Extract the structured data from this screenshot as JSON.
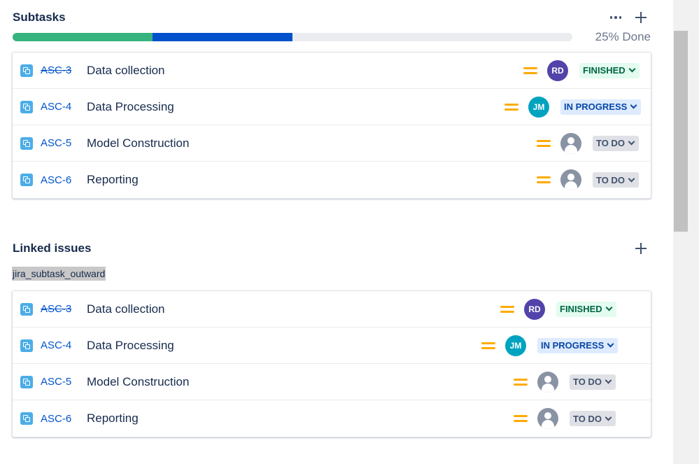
{
  "subtasks": {
    "title": "Subtasks",
    "progress": {
      "text": "25% Done",
      "done_fraction": 0.25,
      "in_progress_fraction": 0.25
    },
    "items": [
      {
        "key": "ASC-3",
        "summary": "Data collection",
        "assignee": "RD",
        "avatar_color": "#5243aa",
        "status": "FINISHED",
        "status_type": "finished",
        "key_struck": true
      },
      {
        "key": "ASC-4",
        "summary": "Data Processing",
        "assignee": "JM",
        "avatar_color": "#00a3bf",
        "status": "IN PROGRESS",
        "status_type": "inprogress",
        "key_struck": false
      },
      {
        "key": "ASC-5",
        "summary": "Model Construction",
        "assignee": "",
        "avatar_color": "#8993a4",
        "status": "TO DO",
        "status_type": "todo",
        "key_struck": false
      },
      {
        "key": "ASC-6",
        "summary": "Reporting",
        "assignee": "",
        "avatar_color": "#8993a4",
        "status": "TO DO",
        "status_type": "todo",
        "key_struck": false
      }
    ]
  },
  "linked_issues": {
    "title": "Linked issues",
    "relation_label": "jira_subtask_outward",
    "items": [
      {
        "key": "ASC-3",
        "summary": "Data collection",
        "assignee": "RD",
        "avatar_color": "#5243aa",
        "status": "FINISHED",
        "status_type": "finished",
        "key_struck": true
      },
      {
        "key": "ASC-4",
        "summary": "Data Processing",
        "assignee": "JM",
        "avatar_color": "#00a3bf",
        "status": "IN PROGRESS",
        "status_type": "inprogress",
        "key_struck": false
      },
      {
        "key": "ASC-5",
        "summary": "Model Construction",
        "assignee": "",
        "avatar_color": "#8993a4",
        "status": "TO DO",
        "status_type": "todo",
        "key_struck": false
      },
      {
        "key": "ASC-6",
        "summary": "Reporting",
        "assignee": "",
        "avatar_color": "#8993a4",
        "status": "TO DO",
        "status_type": "todo",
        "key_struck": false
      }
    ]
  },
  "icons": {
    "more": "more-horizontal-icon",
    "add": "plus-icon",
    "issue_type": "subtask-icon",
    "priority": "priority-medium-icon",
    "status_chevron": "chevron-down-icon",
    "default_avatar": "default-avatar-icon"
  }
}
